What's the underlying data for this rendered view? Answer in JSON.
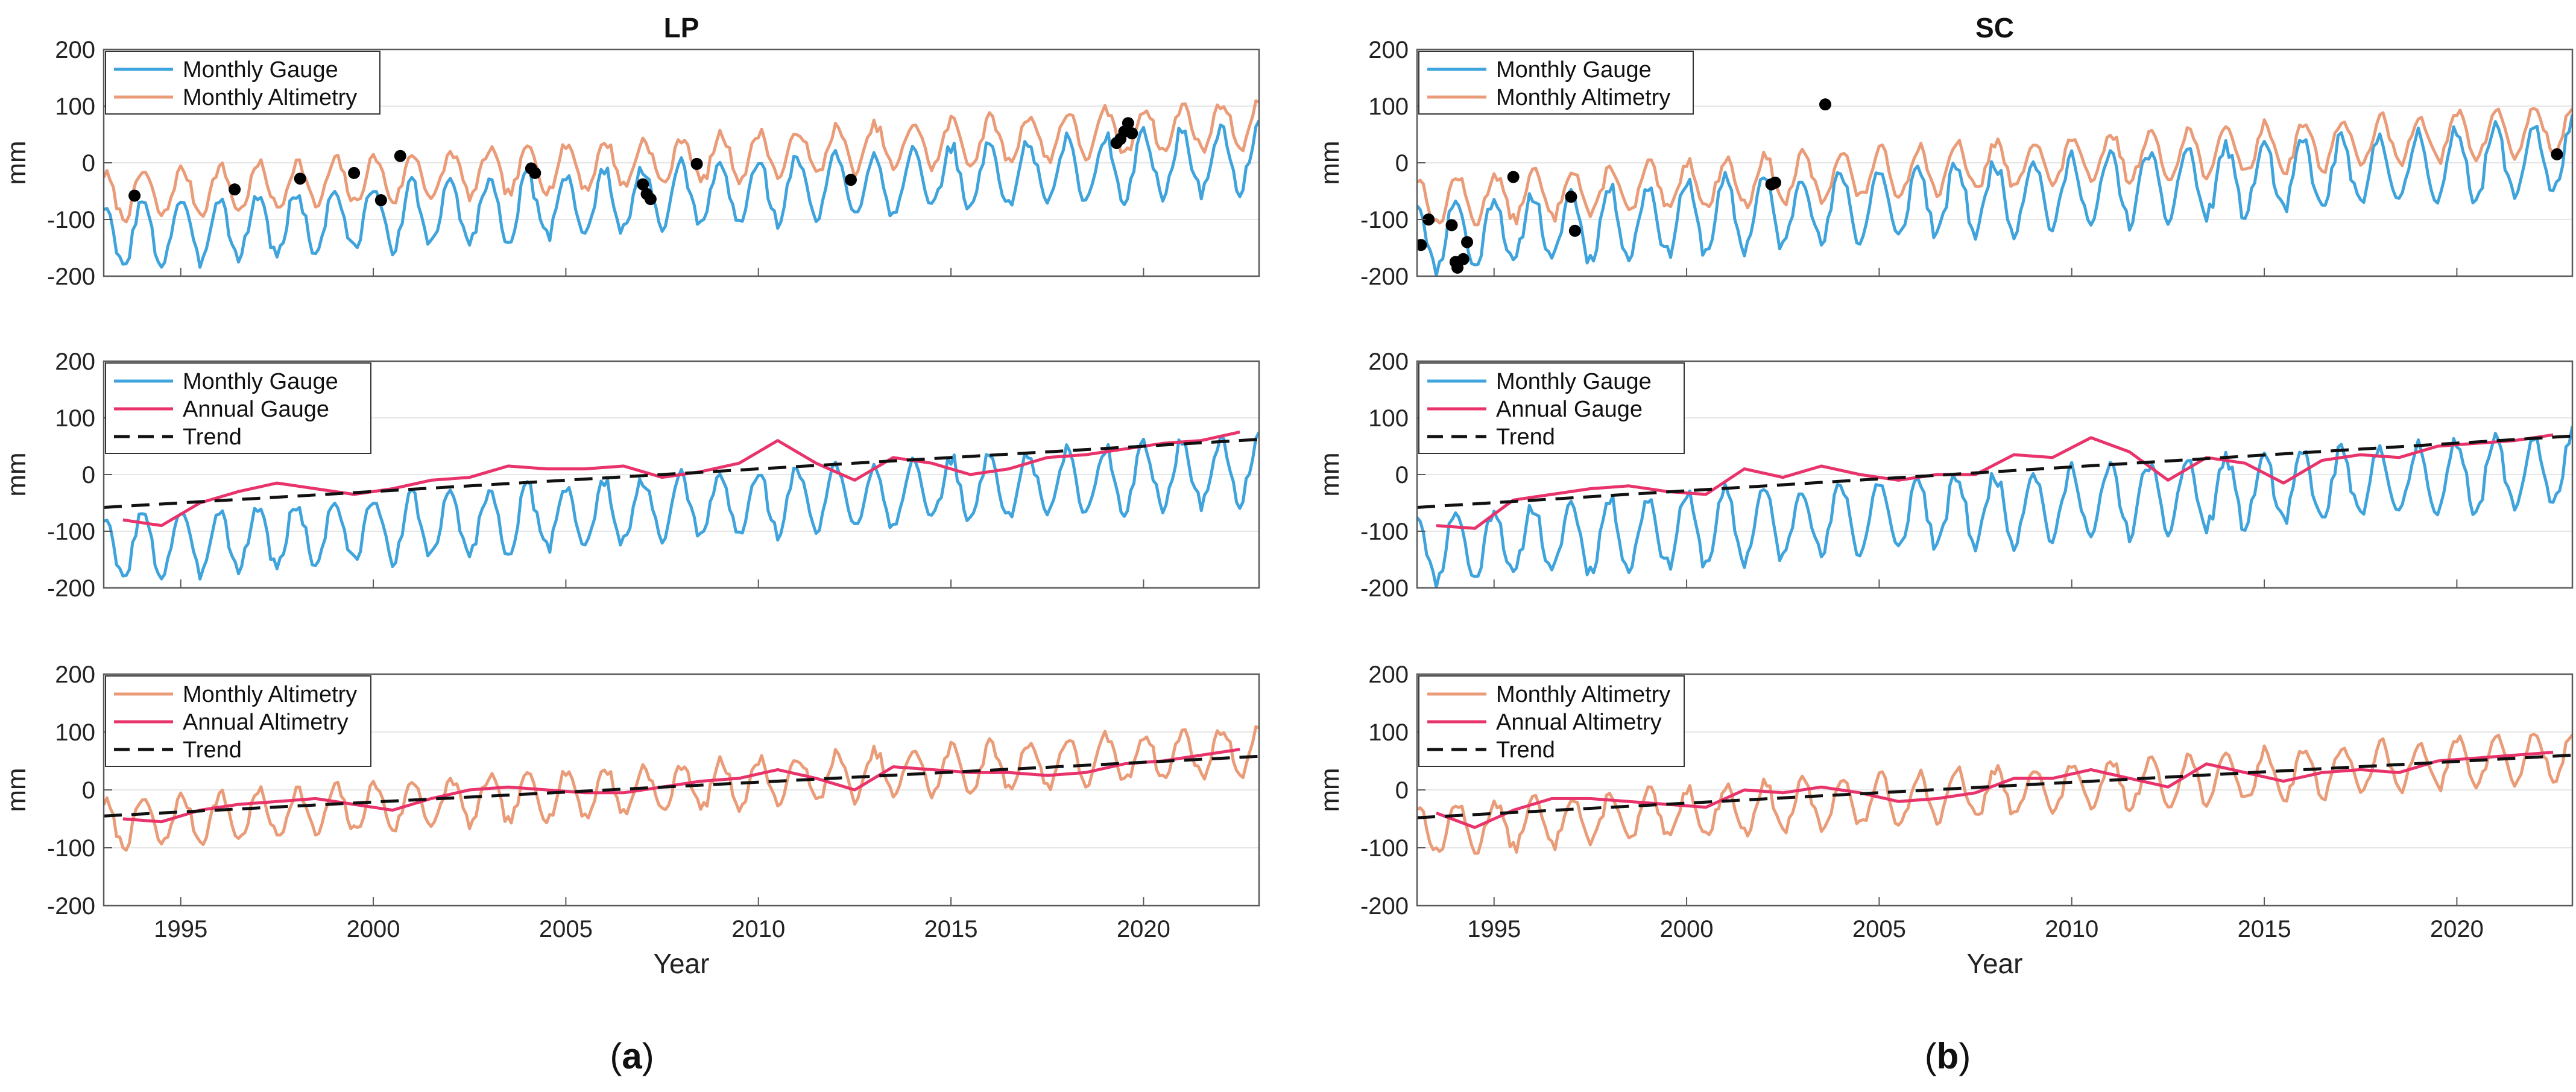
{
  "figure": {
    "panel_a_label": {
      "open": "(",
      "letter": "a",
      "close": ")"
    },
    "panel_b_label": {
      "open": "(",
      "letter": "b",
      "close": ")"
    }
  },
  "colors": {
    "monthly_gauge": "#3fa3dc",
    "monthly_altimetry": "#ea9c78",
    "annual": "#e8336b",
    "trend": "#111111",
    "gap_points": "#000000",
    "grid": "#e6e6e6",
    "axes": "#5a5a5a"
  },
  "chart_data": [
    {
      "id": "LP-top",
      "type": "line",
      "title": "LP",
      "ylabel": "mm",
      "xlabel": "",
      "xlim": [
        1993,
        2023
      ],
      "ylim": [
        -200,
        200
      ],
      "yticks": [
        -200,
        -100,
        0,
        100,
        200
      ],
      "xticks": [],
      "grid": "horizontal",
      "legend_position": "top-left",
      "series": [
        {
          "name": "Monthly Gauge",
          "kind": "monthly",
          "color": "#3fa3dc",
          "base": [
            -130,
            10
          ],
          "amp": 55,
          "phase": 0.25,
          "seed": 3,
          "noise": 14
        },
        {
          "name": "Monthly Altimetry",
          "kind": "monthly",
          "color": "#ea9c78",
          "base": [
            -60,
            70
          ],
          "amp": 40,
          "phase": 0.22,
          "seed": 7,
          "noise": 10
        }
      ],
      "points": [
        [
          1993.8,
          -58
        ],
        [
          1996.4,
          -47
        ],
        [
          1998.1,
          -28
        ],
        [
          1999.5,
          -18
        ],
        [
          2000.2,
          -66
        ],
        [
          2000.7,
          12
        ],
        [
          2004.1,
          -10
        ],
        [
          2004.2,
          -18
        ],
        [
          2007.0,
          -38
        ],
        [
          2007.1,
          -55
        ],
        [
          2007.2,
          -64
        ],
        [
          2008.4,
          -2
        ],
        [
          2012.4,
          -30
        ],
        [
          2019.3,
          35
        ],
        [
          2019.4,
          42
        ],
        [
          2019.5,
          55
        ],
        [
          2019.6,
          70
        ],
        [
          2019.7,
          52
        ]
      ]
    },
    {
      "id": "LP-mid",
      "type": "line",
      "title": "",
      "ylabel": "mm",
      "xlabel": "",
      "xlim": [
        1993,
        2023
      ],
      "ylim": [
        -200,
        200
      ],
      "yticks": [
        -200,
        -100,
        0,
        100,
        200
      ],
      "xticks": [],
      "grid": "horizontal",
      "legend_position": "top-left",
      "series": [
        {
          "name": "Monthly Gauge",
          "kind": "monthly",
          "color": "#3fa3dc",
          "base": [
            -130,
            10
          ],
          "amp": 55,
          "phase": 0.25,
          "seed": 3,
          "noise": 14
        },
        {
          "name": "Annual Gauge",
          "kind": "annual",
          "color": "#e8336b",
          "x": [
            1993.5,
            1994.5,
            1995.5,
            1996.5,
            1997.5,
            1998.5,
            1999.5,
            2000.5,
            2001.5,
            2002.5,
            2003.5,
            2004.5,
            2005.5,
            2006.5,
            2007.5,
            2008.5,
            2009.5,
            2010.5,
            2011.5,
            2012.5,
            2013.5,
            2014.5,
            2015.5,
            2016.5,
            2017.5,
            2018.5,
            2019.5,
            2020.5,
            2021.5,
            2022.5
          ],
          "y": [
            -80,
            -90,
            -50,
            -30,
            -15,
            -25,
            -35,
            -25,
            -10,
            -5,
            15,
            10,
            10,
            15,
            -5,
            5,
            20,
            60,
            20,
            -10,
            30,
            20,
            0,
            10,
            30,
            35,
            45,
            55,
            60,
            75
          ]
        },
        {
          "name": "Trend",
          "kind": "trend",
          "color": "#111111",
          "x": [
            1993,
            2023
          ],
          "y": [
            -58,
            62
          ]
        }
      ]
    },
    {
      "id": "LP-bot",
      "type": "line",
      "title": "",
      "ylabel": "mm",
      "xlabel": "Year",
      "xlim": [
        1993,
        2023
      ],
      "ylim": [
        -200,
        200
      ],
      "yticks": [
        -200,
        -100,
        0,
        100,
        200
      ],
      "xticks": [
        1995,
        2000,
        2005,
        2010,
        2015,
        2020
      ],
      "grid": "horizontal",
      "legend_position": "top-left",
      "series": [
        {
          "name": "Monthly Altimetry",
          "kind": "monthly",
          "color": "#ea9c78",
          "base": [
            -60,
            70
          ],
          "amp": 40,
          "phase": 0.22,
          "seed": 7,
          "noise": 10
        },
        {
          "name": "Annual Altimetry",
          "kind": "annual",
          "color": "#e8336b",
          "x": [
            1993.5,
            1994.5,
            1995.5,
            1996.5,
            1997.5,
            1998.5,
            1999.5,
            2000.5,
            2001.5,
            2002.5,
            2003.5,
            2004.5,
            2005.5,
            2006.5,
            2007.5,
            2008.5,
            2009.5,
            2010.5,
            2011.5,
            2012.5,
            2013.5,
            2014.5,
            2015.5,
            2016.5,
            2017.5,
            2018.5,
            2019.5,
            2020.5,
            2021.5,
            2022.5
          ],
          "y": [
            -50,
            -55,
            -35,
            -25,
            -20,
            -15,
            -25,
            -35,
            -15,
            0,
            5,
            0,
            -5,
            -5,
            5,
            15,
            20,
            35,
            20,
            0,
            40,
            35,
            30,
            30,
            25,
            30,
            45,
            50,
            60,
            70
          ]
        },
        {
          "name": "Trend",
          "kind": "trend",
          "color": "#111111",
          "x": [
            1993,
            2023
          ],
          "y": [
            -45,
            58
          ]
        }
      ]
    },
    {
      "id": "SC-top",
      "type": "line",
      "title": "SC",
      "ylabel": "mm",
      "xlabel": "",
      "xlim": [
        1993,
        2023
      ],
      "ylim": [
        -200,
        200
      ],
      "yticks": [
        -200,
        -100,
        0,
        100,
        200
      ],
      "xticks": [],
      "grid": "horizontal",
      "legend_position": "top-left",
      "series": [
        {
          "name": "Monthly Gauge",
          "kind": "monthly",
          "color": "#3fa3dc",
          "base": [
            -130,
            10
          ],
          "amp": 62,
          "phase": 0.25,
          "seed": 11,
          "noise": 15
        },
        {
          "name": "Monthly Altimetry",
          "kind": "monthly",
          "color": "#ea9c78",
          "base": [
            -70,
            60
          ],
          "amp": 42,
          "phase": 0.22,
          "seed": 13,
          "noise": 10
        }
      ],
      "points": [
        [
          1993.1,
          -145
        ],
        [
          1993.3,
          -100
        ],
        [
          1993.9,
          -110
        ],
        [
          1994.0,
          -175
        ],
        [
          1994.05,
          -185
        ],
        [
          1994.2,
          -170
        ],
        [
          1994.3,
          -140
        ],
        [
          1995.5,
          -25
        ],
        [
          1997.0,
          -60
        ],
        [
          1997.1,
          -120
        ],
        [
          2002.2,
          -38
        ],
        [
          2002.3,
          -35
        ],
        [
          2003.6,
          103
        ],
        [
          2022.6,
          15
        ]
      ]
    },
    {
      "id": "SC-mid",
      "type": "line",
      "title": "",
      "ylabel": "mm",
      "xlabel": "",
      "xlim": [
        1993,
        2023
      ],
      "ylim": [
        -200,
        200
      ],
      "yticks": [
        -200,
        -100,
        0,
        100,
        200
      ],
      "xticks": [],
      "grid": "horizontal",
      "legend_position": "top-left",
      "series": [
        {
          "name": "Monthly Gauge",
          "kind": "monthly",
          "color": "#3fa3dc",
          "base": [
            -130,
            10
          ],
          "amp": 62,
          "phase": 0.25,
          "seed": 11,
          "noise": 15
        },
        {
          "name": "Annual Gauge",
          "kind": "annual",
          "color": "#e8336b",
          "x": [
            1993.5,
            1994.5,
            1995.5,
            1996.5,
            1997.5,
            1998.5,
            1999.5,
            2000.5,
            2001.5,
            2002.5,
            2003.5,
            2004.5,
            2005.5,
            2006.5,
            2007.5,
            2008.5,
            2009.5,
            2010.5,
            2011.5,
            2012.5,
            2013.5,
            2014.5,
            2015.5,
            2016.5,
            2017.5,
            2018.5,
            2019.5,
            2020.5,
            2021.5,
            2022.5
          ],
          "y": [
            -90,
            -95,
            -45,
            -35,
            -25,
            -20,
            -30,
            -35,
            10,
            -5,
            15,
            0,
            -10,
            0,
            0,
            35,
            30,
            65,
            40,
            -10,
            30,
            20,
            -15,
            25,
            35,
            30,
            50,
            55,
            60,
            70
          ]
        },
        {
          "name": "Trend",
          "kind": "trend",
          "color": "#111111",
          "x": [
            1993,
            2023
          ],
          "y": [
            -58,
            68
          ]
        }
      ]
    },
    {
      "id": "SC-bot",
      "type": "line",
      "title": "",
      "ylabel": "mm",
      "xlabel": "Year",
      "xlim": [
        1993,
        2023
      ],
      "ylim": [
        -200,
        200
      ],
      "yticks": [
        -200,
        -100,
        0,
        100,
        200
      ],
      "xticks": [
        1995,
        2000,
        2005,
        2010,
        2015,
        2020
      ],
      "grid": "horizontal",
      "legend_position": "top-left",
      "series": [
        {
          "name": "Monthly Altimetry",
          "kind": "monthly",
          "color": "#ea9c78",
          "base": [
            -70,
            60
          ],
          "amp": 42,
          "phase": 0.22,
          "seed": 13,
          "noise": 10
        },
        {
          "name": "Annual Altimetry",
          "kind": "annual",
          "color": "#e8336b",
          "x": [
            1993.5,
            1994.5,
            1995.5,
            1996.5,
            1997.5,
            1998.5,
            1999.5,
            2000.5,
            2001.5,
            2002.5,
            2003.5,
            2004.5,
            2005.5,
            2006.5,
            2007.5,
            2008.5,
            2009.5,
            2010.5,
            2011.5,
            2012.5,
            2013.5,
            2014.5,
            2015.5,
            2016.5,
            2017.5,
            2018.5,
            2019.5,
            2020.5,
            2021.5,
            2022.5
          ],
          "y": [
            -40,
            -65,
            -35,
            -15,
            -15,
            -20,
            -25,
            -30,
            0,
            -5,
            5,
            -5,
            -20,
            -15,
            -5,
            20,
            20,
            35,
            20,
            5,
            45,
            30,
            15,
            30,
            35,
            30,
            50,
            55,
            60,
            65
          ]
        },
        {
          "name": "Trend",
          "kind": "trend",
          "color": "#111111",
          "x": [
            1993,
            2023
          ],
          "y": [
            -48,
            60
          ]
        }
      ]
    }
  ]
}
